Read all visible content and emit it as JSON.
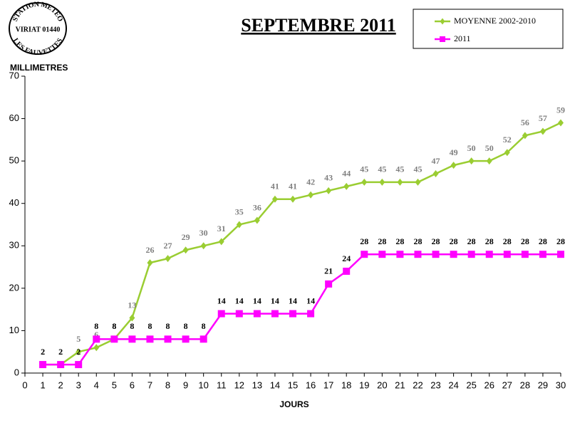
{
  "logo": {
    "top": "STATION METEO",
    "middle": "VIRIAT 01440",
    "bottom": "LES FAUVETTES"
  },
  "chart_data": {
    "type": "line",
    "title": "SEPTEMBRE 2011",
    "ylabel": "MILLIMETRES",
    "xlabel": "JOURS",
    "x": [
      1,
      2,
      3,
      4,
      5,
      6,
      7,
      8,
      9,
      10,
      11,
      12,
      13,
      14,
      15,
      16,
      17,
      18,
      19,
      20,
      21,
      22,
      23,
      24,
      25,
      26,
      27,
      28,
      29,
      30
    ],
    "series": [
      {
        "name": "MOYENNE 2002-2010",
        "color": "#9acd32",
        "marker": "diamond",
        "label_color": "#7f7f7f",
        "values": [
          2,
          2,
          5,
          6,
          8,
          13,
          26,
          27,
          29,
          30,
          31,
          35,
          36,
          41,
          41,
          42,
          43,
          44,
          45,
          45,
          45,
          45,
          47,
          49,
          50,
          50,
          52,
          56,
          57,
          59
        ]
      },
      {
        "name": "2011",
        "color": "#ff00ff",
        "marker": "square",
        "label_color": "#000000",
        "values": [
          2,
          2,
          2,
          8,
          8,
          8,
          8,
          8,
          8,
          8,
          14,
          14,
          14,
          14,
          14,
          14,
          21,
          24,
          28,
          28,
          28,
          28,
          28,
          28,
          28,
          28,
          28,
          28,
          28,
          28
        ]
      }
    ],
    "xlim": [
      0,
      30
    ],
    "xticks": [
      0,
      1,
      2,
      3,
      4,
      5,
      6,
      7,
      8,
      9,
      10,
      11,
      12,
      13,
      14,
      15,
      16,
      17,
      18,
      19,
      20,
      21,
      22,
      23,
      24,
      25,
      26,
      27,
      28,
      29,
      30
    ],
    "ylim": [
      0,
      70
    ],
    "yticks": [
      0,
      10,
      20,
      30,
      40,
      50,
      60,
      70
    ],
    "grid": false,
    "legend": "upper right"
  }
}
